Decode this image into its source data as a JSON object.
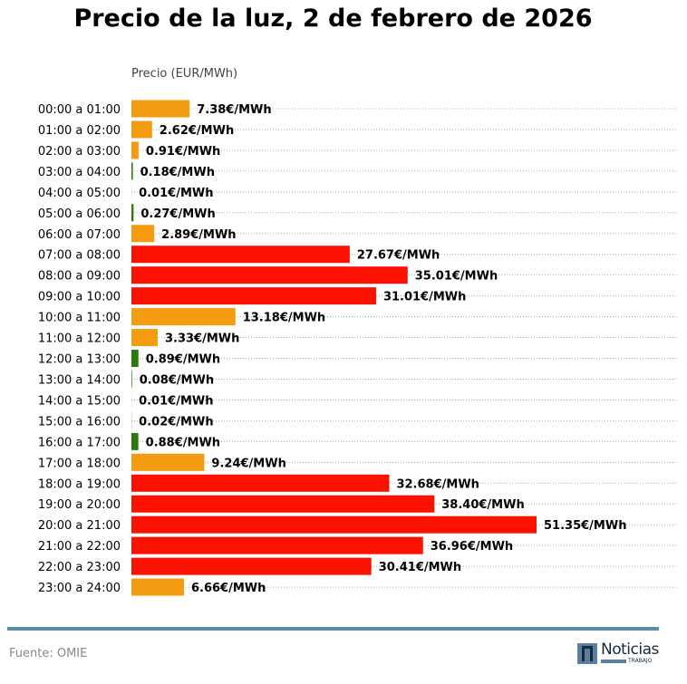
{
  "chart_data": {
    "type": "bar",
    "orientation": "horizontal",
    "title": "Precio de la luz, 2 de febrero de 2026",
    "ylabel": "Precio (EUR/MWh)",
    "value_suffix": "€/MWh",
    "grid": "dotted horizontal",
    "categories": [
      "00:00 a 01:00",
      "01:00 a 02:00",
      "02:00 a 03:00",
      "03:00 a 04:00",
      "04:00 a 05:00",
      "05:00 a 06:00",
      "06:00 a 07:00",
      "07:00 a 08:00",
      "08:00 a 09:00",
      "09:00 a 10:00",
      "10:00 a 11:00",
      "11:00 a 12:00",
      "12:00 a 13:00",
      "13:00 a 14:00",
      "14:00 a 15:00",
      "15:00 a 16:00",
      "16:00 a 17:00",
      "17:00 a 18:00",
      "18:00 a 19:00",
      "19:00 a 20:00",
      "20:00 a 21:00",
      "21:00 a 22:00",
      "22:00 a 23:00",
      "23:00 a 24:00"
    ],
    "values": [
      7.38,
      2.62,
      0.91,
      0.18,
      0.01,
      0.27,
      2.89,
      27.67,
      35.01,
      31.01,
      13.18,
      3.33,
      0.89,
      0.08,
      0.01,
      0.02,
      0.88,
      9.24,
      32.68,
      38.4,
      51.35,
      36.96,
      30.41,
      6.66
    ],
    "labels": [
      "7.38€/MWh",
      "2.62€/MWh",
      "0.91€/MWh",
      "0.18€/MWh",
      "0.01€/MWh",
      "0.27€/MWh",
      "2.89€/MWh",
      "27.67€/MWh",
      "35.01€/MWh",
      "31.01€/MWh",
      "13.18€/MWh",
      "3.33€/MWh",
      "0.89€/MWh",
      "0.08€/MWh",
      "0.01€/MWh",
      "0.02€/MWh",
      "0.88€/MWh",
      "9.24€/MWh",
      "32.68€/MWh",
      "38.40€/MWh",
      "51.35€/MWh",
      "36.96€/MWh",
      "30.41€/MWh",
      "6.66€/MWh"
    ],
    "levels": [
      "medio",
      "medio",
      "medio",
      "bajo",
      "bajo",
      "bajo",
      "medio",
      "alto",
      "alto",
      "alto",
      "medio",
      "medio",
      "bajo",
      "bajo",
      "bajo",
      "bajo",
      "bajo",
      "medio",
      "alto",
      "alto",
      "alto",
      "alto",
      "alto",
      "medio"
    ],
    "level_colors": {
      "bajo": "#2b7a0b",
      "medio": "#f39c12",
      "alto": "#fb1100"
    },
    "xlim": [
      0,
      51.35
    ]
  },
  "footer": {
    "source": "Fuente: OMIE",
    "logo_text": "Noticias",
    "logo_sub": "TRABAJO"
  },
  "colors": {
    "rule": "#5b8fa8"
  }
}
